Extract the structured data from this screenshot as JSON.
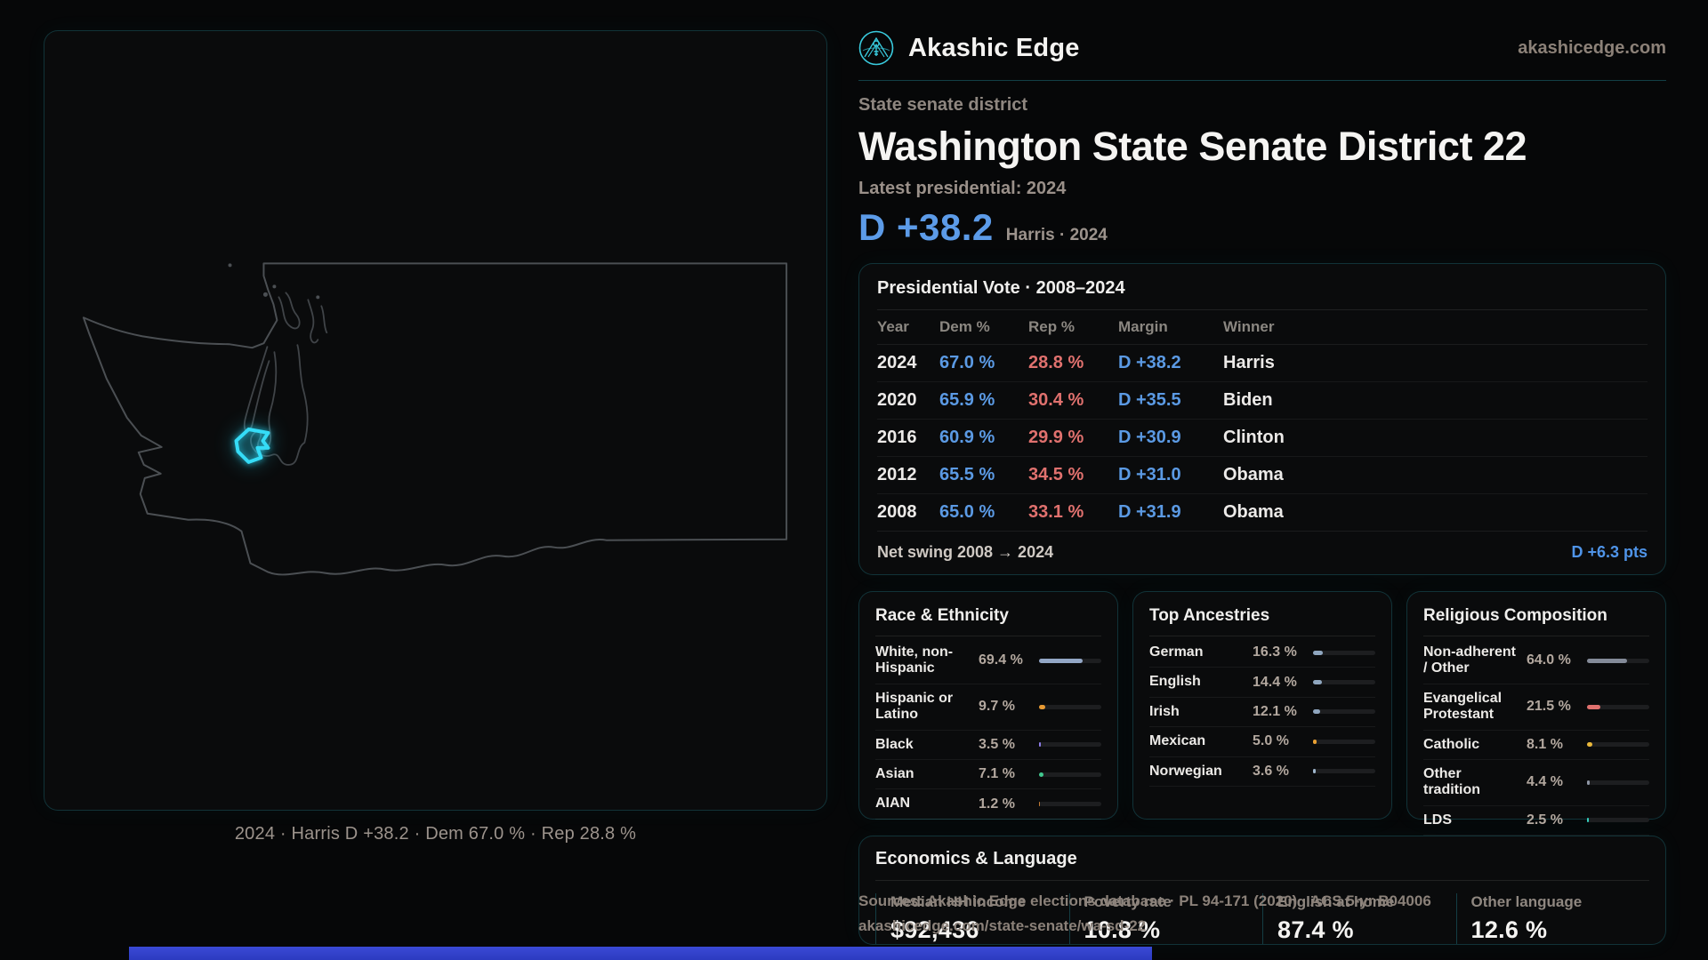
{
  "site": {
    "brand": "Akashic Edge",
    "domain": "akashicedge.com"
  },
  "header": {
    "kicker": "State senate district",
    "title": "Washington State Senate District 22",
    "latest_label": "Latest presidential: 2024",
    "headline_margin": "D +38.2",
    "headline_context": "Harris · 2024",
    "accent_blue": "#5c9be8",
    "accent_red": "#e0716e",
    "accent_cyan": "#35dcf7"
  },
  "map": {
    "caption": "2024 · Harris D +38.2 · Dem 67.0 % · Rep 28.8 %"
  },
  "presidential_table": {
    "title": "Presidential Vote · 2008–2024",
    "columns": [
      "Year",
      "Dem %",
      "Rep %",
      "Margin",
      "Winner"
    ],
    "rows": [
      {
        "year": "2024",
        "dem": "67.0 %",
        "rep": "28.8 %",
        "margin": "D +38.2",
        "winner": "Harris"
      },
      {
        "year": "2020",
        "dem": "65.9 %",
        "rep": "30.4 %",
        "margin": "D +35.5",
        "winner": "Biden"
      },
      {
        "year": "2016",
        "dem": "60.9 %",
        "rep": "29.9 %",
        "margin": "D +30.9",
        "winner": "Clinton"
      },
      {
        "year": "2012",
        "dem": "65.5 %",
        "rep": "34.5 %",
        "margin": "D +31.0",
        "winner": "Obama"
      },
      {
        "year": "2008",
        "dem": "65.0 %",
        "rep": "33.1 %",
        "margin": "D +31.9",
        "winner": "Obama"
      }
    ],
    "net_swing_label": "Net swing 2008 → 2024",
    "net_swing_value": "D +6.3 pts"
  },
  "race_panel": {
    "title": "Race & Ethnicity",
    "rows": [
      {
        "label": "White, non-Hispanic",
        "value": "69.4 %",
        "pct": 69.4,
        "color": "#93a7c6"
      },
      {
        "label": "Hispanic or Latino",
        "value": "9.7 %",
        "pct": 9.7,
        "color": "#e89a33"
      },
      {
        "label": "Black",
        "value": "3.5 %",
        "pct": 3.5,
        "color": "#8d7ce8"
      },
      {
        "label": "Asian",
        "value": "7.1 %",
        "pct": 7.1,
        "color": "#41c98f"
      },
      {
        "label": "AIAN",
        "value": "1.2 %",
        "pct": 1.2,
        "color": "#c07a35"
      }
    ]
  },
  "ancestry_panel": {
    "title": "Top Ancestries",
    "rows": [
      {
        "label": "German",
        "value": "16.3 %",
        "pct": 16.3,
        "color": "#8fa6bf"
      },
      {
        "label": "English",
        "value": "14.4 %",
        "pct": 14.4,
        "color": "#8fa6bf"
      },
      {
        "label": "Irish",
        "value": "12.1 %",
        "pct": 12.1,
        "color": "#8fa6bf"
      },
      {
        "label": "Mexican",
        "value": "5.0 %",
        "pct": 5.0,
        "color": "#e8a033"
      },
      {
        "label": "Norwegian",
        "value": "3.6 %",
        "pct": 3.6,
        "color": "#9fb6cc"
      }
    ]
  },
  "religion_panel": {
    "title": "Religious Composition",
    "rows": [
      {
        "label": "Non-adherent / Other",
        "value": "64.0 %",
        "pct": 64.0,
        "color": "#848b99"
      },
      {
        "label": "Evangelical Protestant",
        "value": "21.5 %",
        "pct": 21.5,
        "color": "#e0716e"
      },
      {
        "label": "Catholic",
        "value": "8.1 %",
        "pct": 8.1,
        "color": "#eab83a"
      },
      {
        "label": "Other tradition",
        "value": "4.4 %",
        "pct": 4.4,
        "color": "#8f97a6"
      },
      {
        "label": "LDS",
        "value": "2.5 %",
        "pct": 2.5,
        "color": "#35cdbb"
      }
    ]
  },
  "economics_panel": {
    "title": "Economics & Language",
    "stats": [
      {
        "label": "Median HH income",
        "value": "$92,436"
      },
      {
        "label": "Poverty rate",
        "value": "10.8 %"
      },
      {
        "label": "English at home",
        "value": "87.4 %"
      },
      {
        "label": "Other language",
        "value": "12.6 %"
      }
    ]
  },
  "footer": {
    "sources": "Sources: Akashic Edge elections database · PL 94-171 (2020) · ACS 5-yr B04006",
    "link": "akashicedge.com/state-senate/wa-sd-22"
  }
}
